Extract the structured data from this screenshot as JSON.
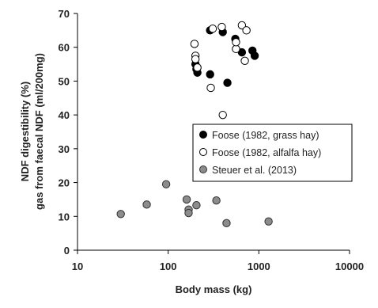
{
  "chart_data": {
    "type": "scatter",
    "xlabel": "Body mass (kg)",
    "ylabel_line1": "NDF digestibility (%)",
    "ylabel_line2": "gas from faecal NDF (ml/200mg)",
    "x_scale": "log",
    "xlim": [
      10,
      10000
    ],
    "ylim": [
      0,
      70
    ],
    "x_ticks": [
      10,
      100,
      1000,
      10000
    ],
    "x_tick_labels": [
      "10",
      "100",
      "1000",
      "10000"
    ],
    "y_ticks": [
      0,
      10,
      20,
      30,
      40,
      50,
      60,
      70
    ],
    "y_tick_labels": [
      "0",
      "10",
      "20",
      "30",
      "40",
      "50",
      "60",
      "70"
    ],
    "grid": false,
    "legend_position": "right-middle",
    "series": [
      {
        "name": "Foose (1982, grass hay)",
        "marker": "filled-black-circle",
        "color": "#000000",
        "points": [
          {
            "x": 200,
            "y": 55
          },
          {
            "x": 205,
            "y": 53.5
          },
          {
            "x": 210,
            "y": 52.5
          },
          {
            "x": 290,
            "y": 52
          },
          {
            "x": 290,
            "y": 65
          },
          {
            "x": 400,
            "y": 64.5
          },
          {
            "x": 450,
            "y": 49.5
          },
          {
            "x": 550,
            "y": 62.5
          },
          {
            "x": 650,
            "y": 58.5
          },
          {
            "x": 850,
            "y": 59
          },
          {
            "x": 900,
            "y": 57.5
          }
        ]
      },
      {
        "name": "Foose (1982, alfalfa hay)",
        "marker": "open-circle",
        "color": "#000000",
        "points": [
          {
            "x": 195,
            "y": 61
          },
          {
            "x": 200,
            "y": 57.5
          },
          {
            "x": 200,
            "y": 56.5
          },
          {
            "x": 210,
            "y": 54
          },
          {
            "x": 295,
            "y": 48
          },
          {
            "x": 310,
            "y": 65.5
          },
          {
            "x": 390,
            "y": 66
          },
          {
            "x": 400,
            "y": 40
          },
          {
            "x": 560,
            "y": 59.5
          },
          {
            "x": 560,
            "y": 61.5
          },
          {
            "x": 650,
            "y": 66.5
          },
          {
            "x": 700,
            "y": 56
          },
          {
            "x": 730,
            "y": 65
          }
        ]
      },
      {
        "name": "Steuer et al. (2013)",
        "marker": "filled-grey-circle",
        "color": "#8c8c8c",
        "points": [
          {
            "x": 30,
            "y": 10.7
          },
          {
            "x": 58,
            "y": 13.5
          },
          {
            "x": 95,
            "y": 19.5
          },
          {
            "x": 160,
            "y": 15
          },
          {
            "x": 168,
            "y": 12
          },
          {
            "x": 168,
            "y": 11
          },
          {
            "x": 205,
            "y": 13.3
          },
          {
            "x": 340,
            "y": 14.7
          },
          {
            "x": 440,
            "y": 8
          },
          {
            "x": 1280,
            "y": 8.5
          }
        ]
      }
    ]
  }
}
